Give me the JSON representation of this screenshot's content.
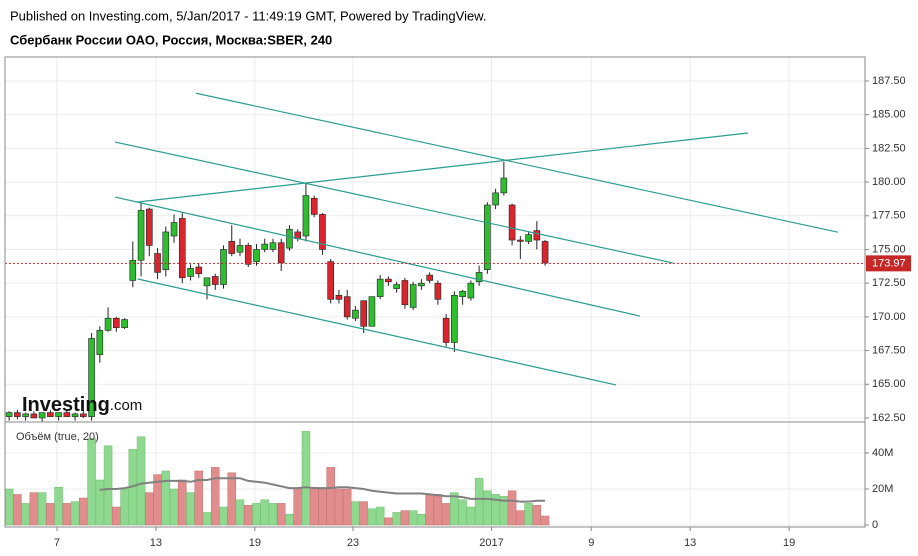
{
  "header": {
    "published": "Published on Investing.com, 5/Jan/2017 - 11:49:19 GMT, Powered by TradingView.",
    "symbol": "Сбербанк России ОАО, Россия, Москва:SBER, 240"
  },
  "logo": {
    "brand": "Investing",
    "suffix": ".com"
  },
  "chart_data": {
    "type": "candlestick",
    "x": [
      0,
      1,
      2,
      3,
      4,
      5,
      6,
      7,
      8,
      9,
      10,
      11,
      12,
      13,
      14,
      15,
      16,
      17,
      18,
      19,
      20,
      21,
      22,
      23,
      24,
      25,
      26,
      27,
      28,
      29,
      30,
      31,
      32,
      33,
      34,
      35,
      36,
      37,
      38,
      39,
      40,
      41,
      42,
      43,
      44,
      45,
      46,
      47,
      48,
      49,
      50,
      51,
      52,
      53,
      54,
      55,
      56,
      57,
      58,
      59,
      60,
      61,
      62,
      63,
      64,
      65
    ],
    "open": [
      162.6,
      162.9,
      162.6,
      162.8,
      162.5,
      162.9,
      162.6,
      162.9,
      162.6,
      162.8,
      162.6,
      167.2,
      169.0,
      169.9,
      169.2,
      172.7,
      174.2,
      178.0,
      174.7,
      173.5,
      176.0,
      177.3,
      173.0,
      173.7,
      172.3,
      173.0,
      172.4,
      175.6,
      174.8,
      175.3,
      174.1,
      175.0,
      175.0,
      175.5,
      175.1,
      176.3,
      176.0,
      178.8,
      177.6,
      174.1,
      171.6,
      171.5,
      169.9,
      171.2,
      169.3,
      171.5,
      172.8,
      172.1,
      172.7,
      170.7,
      172.3,
      173.1,
      172.5,
      169.9,
      168.1,
      171.5,
      171.4,
      172.6,
      173.5,
      178.3,
      179.2,
      178.3,
      175.7,
      175.6,
      176.4,
      175.6
    ],
    "high": [
      163.0,
      163.1,
      162.9,
      163.0,
      162.8,
      163.1,
      162.9,
      163.1,
      162.9,
      163.1,
      168.8,
      169.3,
      170.7,
      170.0,
      169.9,
      175.6,
      178.5,
      178.1,
      175.1,
      176.7,
      177.6,
      177.7,
      173.9,
      174.0,
      172.9,
      173.2,
      175.3,
      176.8,
      175.8,
      175.5,
      175.4,
      175.8,
      175.8,
      175.8,
      176.8,
      176.5,
      179.9,
      179.0,
      177.7,
      174.3,
      172.0,
      172.0,
      170.8,
      171.2,
      171.5,
      173.1,
      173.0,
      172.6,
      172.9,
      172.6,
      172.8,
      173.3,
      172.7,
      170.2,
      171.9,
      172.0,
      172.7,
      173.8,
      178.5,
      179.5,
      181.5,
      178.4,
      176.0,
      176.3,
      177.1,
      175.7
    ],
    "low": [
      162.3,
      162.4,
      162.3,
      162.5,
      162.2,
      162.6,
      162.3,
      162.6,
      162.3,
      162.5,
      162.3,
      166.6,
      168.9,
      168.9,
      169.1,
      172.2,
      173.0,
      174.5,
      172.8,
      173.0,
      175.5,
      172.5,
      172.7,
      172.9,
      171.3,
      172.0,
      172.1,
      174.5,
      174.5,
      173.7,
      173.8,
      174.8,
      174.8,
      173.4,
      174.9,
      175.6,
      175.6,
      177.4,
      174.6,
      171.0,
      171.0,
      169.8,
      169.7,
      168.8,
      169.3,
      171.3,
      172.3,
      171.8,
      170.6,
      170.5,
      172.0,
      172.5,
      170.9,
      167.8,
      167.4,
      170.9,
      171.2,
      172.3,
      173.2,
      178.0,
      179.0,
      175.3,
      174.3,
      175.4,
      175.0,
      173.8
    ],
    "close": [
      162.9,
      162.6,
      162.8,
      162.5,
      162.9,
      162.6,
      162.9,
      162.6,
      162.8,
      162.6,
      168.4,
      169.0,
      169.9,
      169.2,
      169.8,
      174.2,
      177.9,
      175.3,
      173.3,
      176.3,
      177.0,
      172.9,
      173.6,
      173.2,
      172.9,
      172.4,
      175.0,
      174.7,
      175.3,
      173.9,
      175.0,
      175.4,
      175.5,
      174.0,
      176.5,
      175.8,
      179.0,
      177.6,
      175.0,
      171.3,
      171.3,
      170.0,
      170.5,
      169.3,
      171.5,
      172.8,
      172.6,
      172.4,
      170.9,
      172.4,
      172.5,
      172.7,
      171.3,
      168.1,
      171.6,
      171.9,
      172.5,
      173.3,
      178.3,
      179.2,
      180.3,
      175.7,
      175.6,
      176.1,
      175.7,
      174.0
    ],
    "volume": [
      20000000,
      17000000,
      12000000,
      18000000,
      18000000,
      12000000,
      21000000,
      12000000,
      13000000,
      15000000,
      48000000,
      25000000,
      44000000,
      10000000,
      20000000,
      42000000,
      49000000,
      18000000,
      28000000,
      30000000,
      20000000,
      25000000,
      18000000,
      30000000,
      7000000,
      32000000,
      10000000,
      29000000,
      14000000,
      11000000,
      12000000,
      14000000,
      12000000,
      12000000,
      6000000,
      20000000,
      52000000,
      21000000,
      20000000,
      32000000,
      20000000,
      20000000,
      13000000,
      13000000,
      9000000,
      10000000,
      4000000,
      7000000,
      8000000,
      8000000,
      6000000,
      17000000,
      17000000,
      12000000,
      18000000,
      14000000,
      10000000,
      26000000,
      19000000,
      17000000,
      16000000,
      19000000,
      8000000,
      12000000,
      11000000,
      5000000
    ],
    "volume_ma": [
      null,
      null,
      null,
      null,
      null,
      null,
      null,
      null,
      null,
      null,
      null,
      19500000,
      20000000,
      20000000,
      20500000,
      21500000,
      23000000,
      23500000,
      24000000,
      24500000,
      24500000,
      24500000,
      24000000,
      25000000,
      25000000,
      26000000,
      26000000,
      26000000,
      26000000,
      24500000,
      24000000,
      23500000,
      22500000,
      21500000,
      20500000,
      20500000,
      21000000,
      20500000,
      20500000,
      20500000,
      21000000,
      21000000,
      20500000,
      20000000,
      19000000,
      18500000,
      18000000,
      17500000,
      17500000,
      17500000,
      17500000,
      17000000,
      16500000,
      16000000,
      16000000,
      15500000,
      14500000,
      14500000,
      14500000,
      14000000,
      13500000,
      13500000,
      13000000,
      13000000,
      13500000,
      13500000
    ],
    "volume_title": "Объём (true, 20)",
    "up_color": "#2ebd2e",
    "down_color": "#d9262e",
    "volume_up_color": "#8fd88f",
    "volume_down_color": "#e28d8d",
    "volume_ma_color": "#808080",
    "trendline_color": "#2a9d8f",
    "trendlines": [
      {
        "x": [
          22.67,
          100.5
        ],
        "y": [
          186.59,
          176.28
        ]
      },
      {
        "x": [
          12.85,
          80.5
        ],
        "y": [
          182.97,
          174.0
        ]
      },
      {
        "x": [
          12.85,
          76.5
        ],
        "y": [
          178.89,
          170.06
        ]
      },
      {
        "x": [
          15.6,
          73.6
        ],
        "y": [
          172.81,
          164.95
        ]
      },
      {
        "x": [
          15.6,
          89.6
        ],
        "y": [
          178.52,
          183.64
        ]
      }
    ],
    "last_price": 173.97,
    "last_price_color": "#c62828",
    "xlim": [
      -0.5,
      103.8
    ],
    "xticks": [
      {
        "value": 5.8,
        "label": "7"
      },
      {
        "value": 17.8,
        "label": "13"
      },
      {
        "value": 29.8,
        "label": "19"
      },
      {
        "value": 41.7,
        "label": "23"
      },
      {
        "value": 58.5,
        "label": "2017"
      },
      {
        "value": 70.6,
        "label": "9"
      },
      {
        "value": 82.6,
        "label": "13"
      },
      {
        "value": 94.6,
        "label": "19"
      }
    ],
    "ylim": [
      162.2,
      189.28
    ],
    "yticks": [
      {
        "value": 162.5,
        "label": "162.50"
      },
      {
        "value": 165,
        "label": "165.00"
      },
      {
        "value": 167.5,
        "label": "167.50"
      },
      {
        "value": 170,
        "label": "170.00"
      },
      {
        "value": 172.5,
        "label": "172.50"
      },
      {
        "value": 175,
        "label": "175.00"
      },
      {
        "value": 177.5,
        "label": "177.50"
      },
      {
        "value": 180,
        "label": "180.00"
      },
      {
        "value": 182.5,
        "label": "182.50"
      },
      {
        "value": 185,
        "label": "185.00"
      },
      {
        "value": 187.5,
        "label": "187.50"
      }
    ],
    "y2lim": [
      -1100000,
      57200000
    ],
    "y2ticks": [
      0,
      {
        "value": 20000000,
        "label": "20M"
      },
      {
        "value": 40000000,
        "label": "40M"
      }
    ],
    "grid": true
  }
}
